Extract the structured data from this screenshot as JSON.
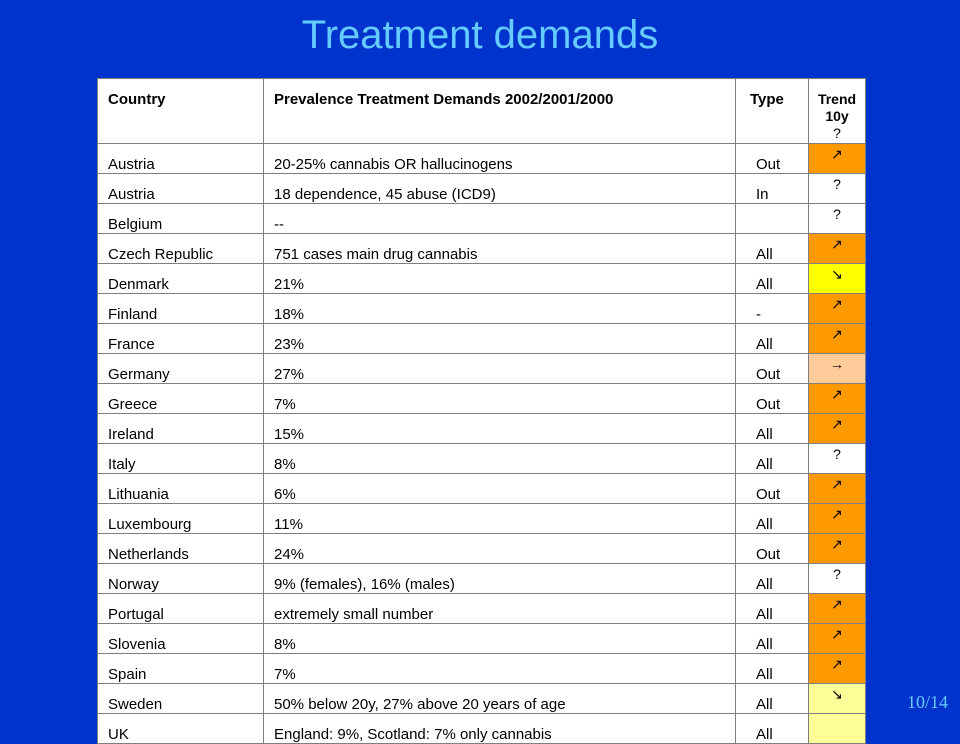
{
  "slide": {
    "title": "Treatment demands",
    "page_number": "10/14"
  },
  "table": {
    "headers": {
      "country": "Country",
      "prevalence": "Prevalence  Treatment Demands 2002/2001/2000",
      "type": "Type",
      "trend_line1": "Trend",
      "trend_line2": "10y",
      "trend_first_symbol": "?"
    },
    "rows": [
      {
        "country": "Austria",
        "prevalence": "20-25% cannabis OR hallucinogens",
        "type": "Out",
        "trend": "↗",
        "trend_color": "#ff9900"
      },
      {
        "country": "Austria",
        "prevalence": "18 dependence, 45 abuse (ICD9)",
        "type": "In",
        "trend": "?",
        "trend_color": "#ffffff"
      },
      {
        "country": "Belgium",
        "prevalence": "--",
        "type": "",
        "trend": "?",
        "trend_color": "#ffffff"
      },
      {
        "country": "Czech Republic",
        "prevalence": "751 cases main drug cannabis",
        "type": "All",
        "trend": "↗",
        "trend_color": "#ff9900"
      },
      {
        "country": "Denmark",
        "prevalence": "21%",
        "type": "All",
        "trend": "↘",
        "trend_color": "#ffff00"
      },
      {
        "country": "Finland",
        "prevalence": "18%",
        "type": "-",
        "trend": "↗",
        "trend_color": "#ff9900"
      },
      {
        "country": "France",
        "prevalence": "23%",
        "type": "All",
        "trend": "↗",
        "trend_color": "#ff9900"
      },
      {
        "country": "Germany",
        "prevalence": "27%",
        "type": "Out",
        "trend": "→",
        "trend_color": "#ffcc99"
      },
      {
        "country": "Greece",
        "prevalence": "7%",
        "type": "Out",
        "trend": "↗",
        "trend_color": "#ff9900"
      },
      {
        "country": "Ireland",
        "prevalence": "15%",
        "type": "All",
        "trend": "↗",
        "trend_color": "#ff9900"
      },
      {
        "country": "Italy",
        "prevalence": "8%",
        "type": "All",
        "trend": "?",
        "trend_color": "#ffffff"
      },
      {
        "country": "Lithuania",
        "prevalence": "6%",
        "type": "Out",
        "trend": "↗",
        "trend_color": "#ff9900"
      },
      {
        "country": "Luxembourg",
        "prevalence": "11%",
        "type": "All",
        "trend": "↗",
        "trend_color": "#ff9900"
      },
      {
        "country": "Netherlands",
        "prevalence": "24%",
        "type": "Out",
        "trend": "↗",
        "trend_color": "#ff9900"
      },
      {
        "country": "Norway",
        "prevalence": "9% (females), 16% (males)",
        "type": "All",
        "trend": "?",
        "trend_color": "#ffffff"
      },
      {
        "country": "Portugal",
        "prevalence": "extremely small number",
        "type": "All",
        "trend": "↗",
        "trend_color": "#ff9900"
      },
      {
        "country": "Slovenia",
        "prevalence": "8%",
        "type": "All",
        "trend": "↗",
        "trend_color": "#ff9900"
      },
      {
        "country": "Spain",
        "prevalence": "7%",
        "type": "All",
        "trend": "↗",
        "trend_color": "#ff9900"
      },
      {
        "country": "Sweden",
        "prevalence": "50% below 20y, 27% above 20 years of age",
        "type": "All",
        "trend": "↘",
        "trend_color": "#ffff99"
      },
      {
        "country": "UK",
        "prevalence": "England: 9%, Scotland: 7% only cannabis",
        "type": "All",
        "trend": "",
        "trend_color": "#ffff99"
      }
    ]
  }
}
